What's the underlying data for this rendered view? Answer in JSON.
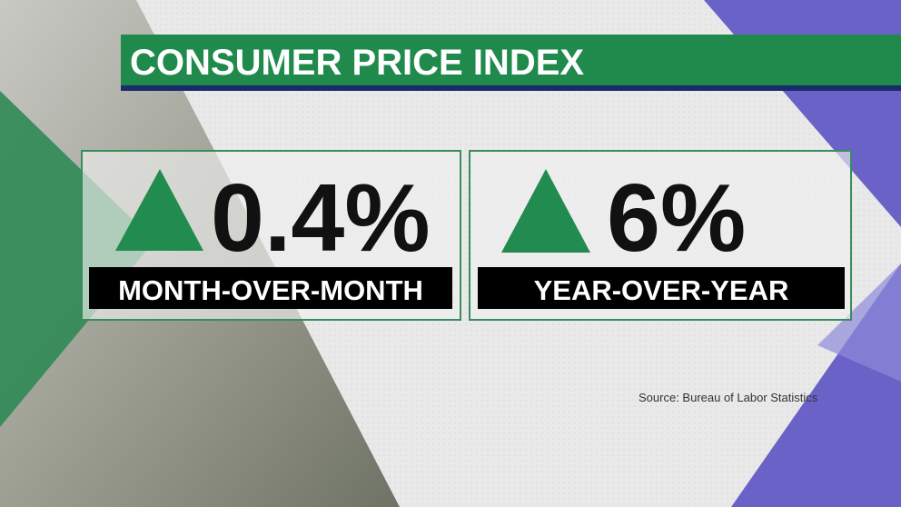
{
  "header": {
    "title": "CONSUMER PRICE INDEX"
  },
  "panels": [
    {
      "value": "0.4%",
      "label": "MONTH-OVER-MONTH"
    },
    {
      "value": "6%",
      "label": "YEAR-OVER-YEAR"
    }
  ],
  "source": "Source: Bureau of Labor Statistics"
}
